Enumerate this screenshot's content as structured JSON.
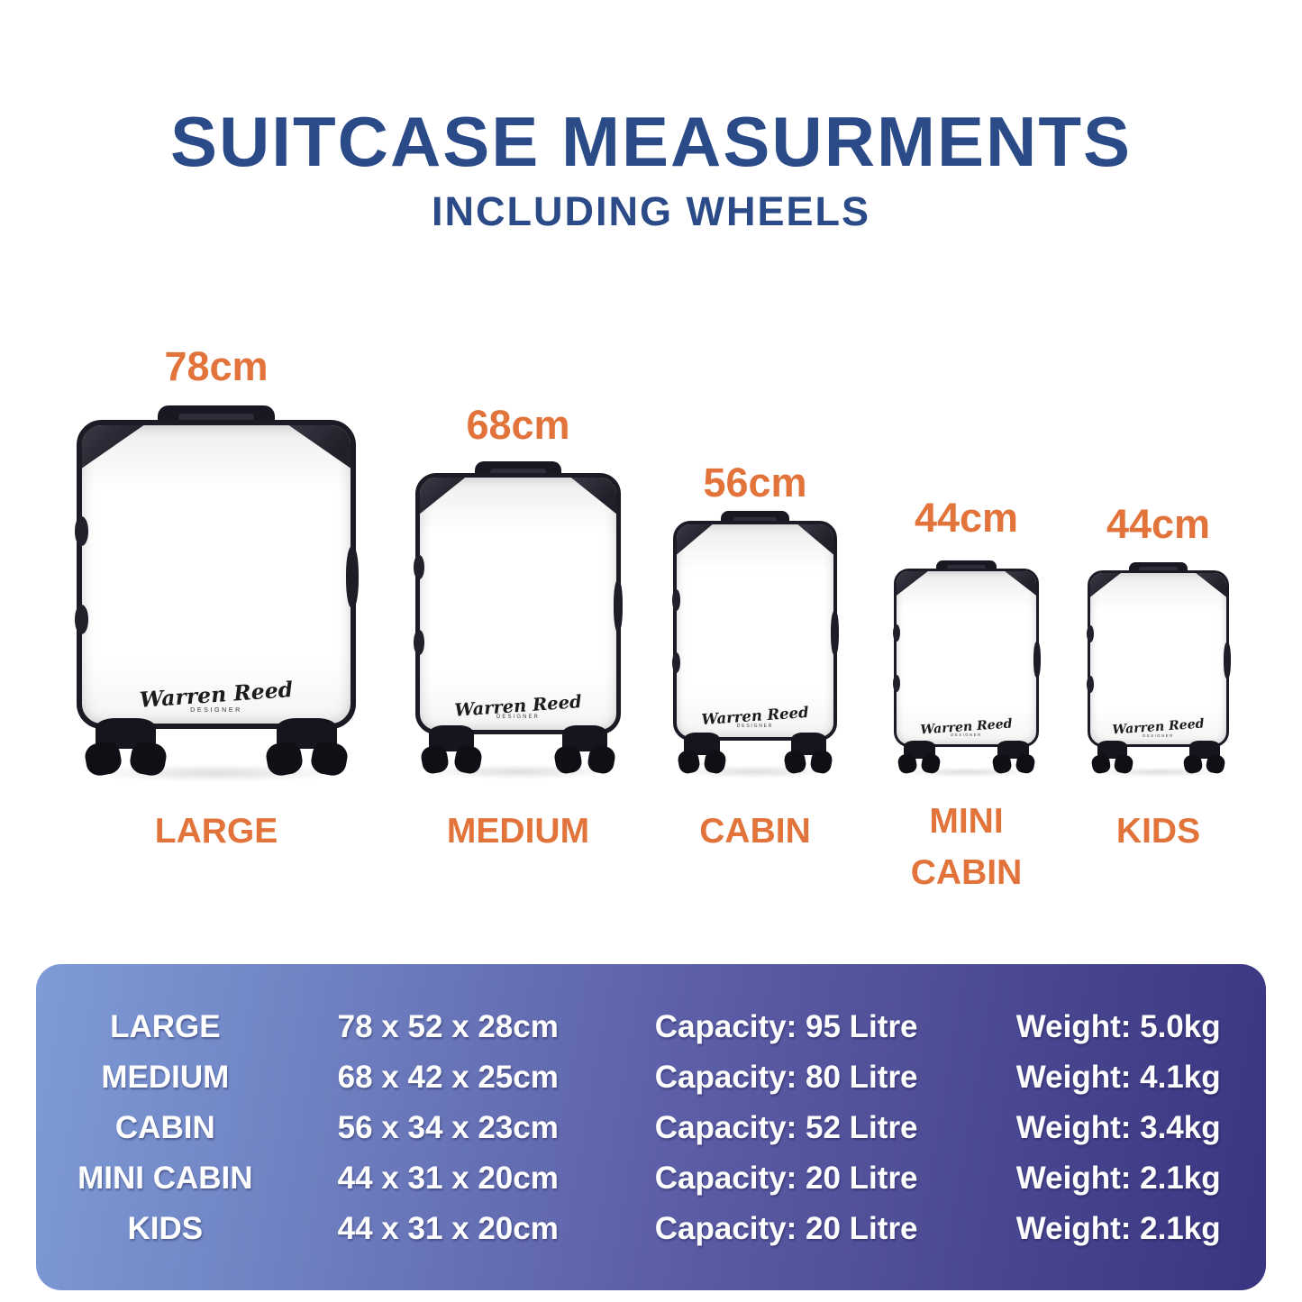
{
  "title": "SUITCASE MEASURMENTS",
  "subtitle": "INCLUDING WHEELS",
  "colors": {
    "title_navy": "#2b4b88",
    "accent_orange": "#e2733a",
    "table_gradient_start": "#7e9cd7",
    "table_gradient_end": "#3a3580",
    "table_text": "#ffffff",
    "suitcase_trim": "#1b1b25"
  },
  "logo": {
    "name": "Warren Reed",
    "subtext": "DESIGNER"
  },
  "suitcases": [
    {
      "id": "large",
      "height_label": "78cm",
      "name_label": "LARGE"
    },
    {
      "id": "medium",
      "height_label": "68cm",
      "name_label": "MEDIUM"
    },
    {
      "id": "cabin",
      "height_label": "56cm",
      "name_label": "CABIN"
    },
    {
      "id": "mini-cabin",
      "height_label": "44cm",
      "name_label": "MINI CABIN"
    },
    {
      "id": "kids",
      "height_label": "44cm",
      "name_label": "KIDS"
    }
  ],
  "table": {
    "rows": [
      {
        "name": "LARGE",
        "dimensions": "78 x 52 x 28cm",
        "capacity": "Capacity: 95 Litre",
        "weight": "Weight: 5.0kg"
      },
      {
        "name": "MEDIUM",
        "dimensions": "68 x 42 x 25cm",
        "capacity": "Capacity: 80 Litre",
        "weight": "Weight: 4.1kg"
      },
      {
        "name": "CABIN",
        "dimensions": "56 x 34 x 23cm",
        "capacity": "Capacity: 52 Litre",
        "weight": "Weight: 3.4kg"
      },
      {
        "name": "MINI CABIN",
        "dimensions": "44 x 31 x 20cm",
        "capacity": "Capacity: 20 Litre",
        "weight": "Weight: 2.1kg"
      },
      {
        "name": "KIDS",
        "dimensions": "44 x 31 x 20cm",
        "capacity": "Capacity: 20 Litre",
        "weight": "Weight: 2.1kg"
      }
    ]
  }
}
